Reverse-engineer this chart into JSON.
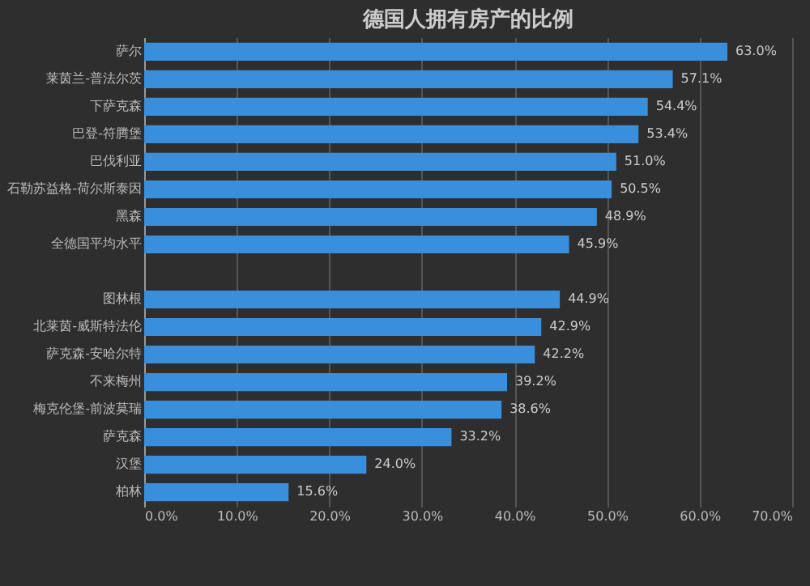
{
  "chart_data": {
    "type": "bar",
    "orientation": "horizontal",
    "title": "德国人拥有房产的比例",
    "categories": [
      "萨尔",
      "莱茵兰-普法尔茨",
      "下萨克森",
      "巴登-符腾堡",
      "巴伐利亚",
      "石勒苏益格-荷尔斯泰因",
      "黑森",
      "全德国平均水平",
      null,
      "图林根",
      "北莱茵-威斯特法伦",
      "萨克森-安哈尔特",
      "不来梅州",
      "梅克伦堡-前波莫瑞",
      "萨克森",
      "汉堡",
      "柏林"
    ],
    "values": [
      63.0,
      57.1,
      54.4,
      53.4,
      51.0,
      50.5,
      48.9,
      45.9,
      null,
      44.9,
      42.9,
      42.2,
      39.2,
      38.6,
      33.2,
      24.0,
      15.6
    ],
    "value_labels": [
      "63.0%",
      "57.1%",
      "54.4%",
      "53.4%",
      "51.0%",
      "50.5%",
      "48.9%",
      "45.9%",
      null,
      "44.9%",
      "42.9%",
      "42.2%",
      "39.2%",
      "38.6%",
      "33.2%",
      "24.0%",
      "15.6%"
    ],
    "color": "#3a8fdc",
    "xlim": [
      0,
      70
    ],
    "xticks": [
      {
        "value": 0,
        "label": "0.0%"
      },
      {
        "value": 10,
        "label": "10.0%"
      },
      {
        "value": 20,
        "label": "20.0%"
      },
      {
        "value": 30,
        "label": "30.0%"
      },
      {
        "value": 40,
        "label": "40.0%"
      },
      {
        "value": 50,
        "label": "50.0%"
      },
      {
        "value": 60,
        "label": "60.0%"
      },
      {
        "value": 70,
        "label": "70.0%"
      }
    ],
    "grid": "x"
  }
}
